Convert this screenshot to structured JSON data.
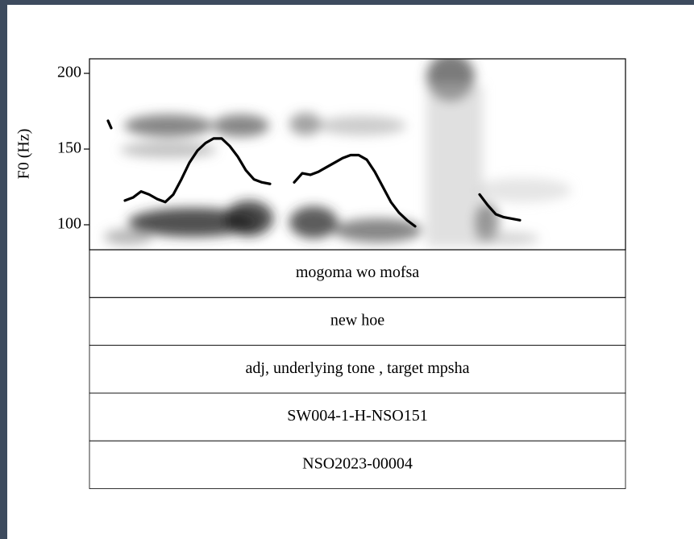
{
  "chart_data": {
    "type": "line",
    "ylabel": "F0 (Hz)",
    "ylim": [
      83.5,
      209.6
    ],
    "yticks": [
      100,
      150,
      200
    ],
    "categories": [
      null,
      null,
      null,
      null,
      null,
      null,
      null,
      null,
      null,
      null,
      null,
      null,
      null,
      null,
      null,
      null,
      null,
      null,
      null,
      null,
      null,
      null,
      null,
      null,
      null,
      null,
      null,
      null,
      null,
      null,
      null,
      null,
      null,
      null,
      null,
      null,
      null,
      null,
      null,
      null,
      null,
      null,
      null,
      null,
      null,
      null,
      null,
      null,
      null,
      null,
      null,
      null
    ],
    "series": [
      {
        "color": "#000000",
        "values": [
          166,
          null,
          116,
          118,
          122,
          120,
          117,
          115,
          120,
          130,
          141,
          149,
          154,
          157,
          157,
          152,
          145,
          136,
          130,
          128,
          127,
          null,
          null,
          128,
          134,
          133,
          135,
          138,
          141,
          144,
          146,
          146,
          143,
          135,
          125,
          115,
          108,
          103,
          99,
          null,
          null,
          null,
          null,
          null,
          null,
          null,
          120,
          113,
          107,
          105,
          104,
          103
        ]
      }
    ],
    "tiers": [
      "mogoma wo mofsa",
      "new hoe",
      "adj, underlying tone , target mpsha",
      "SW004-1-H-NSO151",
      "NSO2023-00004"
    ]
  }
}
